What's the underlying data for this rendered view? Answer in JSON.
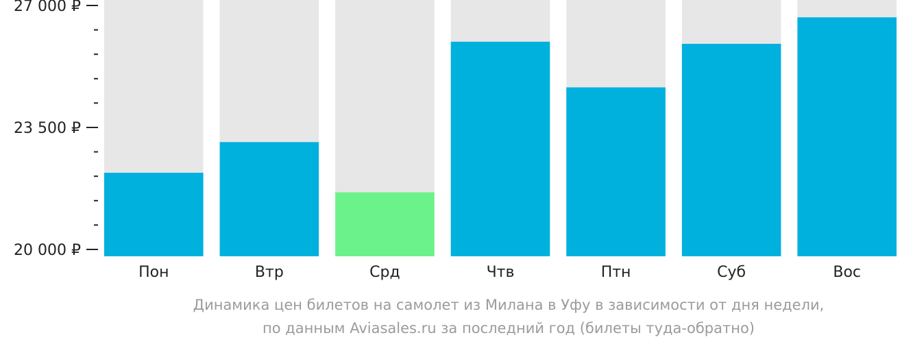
{
  "chart_data": {
    "type": "bar",
    "categories": [
      "Пон",
      "Втр",
      "Срд",
      "Чтв",
      "Птн",
      "Суб",
      "Вос"
    ],
    "values": [
      22200,
      23080,
      21640,
      25960,
      24650,
      25900,
      26660
    ],
    "ylim": [
      20000,
      27000
    ],
    "yticks": [
      20000,
      23500,
      27000
    ],
    "ytick_labels": [
      "20 000 ₽",
      "23 500 ₽",
      "27 000 ₽"
    ],
    "minor_ticks_between_labels": 4,
    "grid": false,
    "highlight_index": 2,
    "colors": {
      "bar": "#00b0dd",
      "highlight": "#6cf28a",
      "bar_background": "#e7e7e7",
      "axis": "#222222"
    }
  },
  "caption": {
    "line1": "Динамика цен билетов на самолет из Милана в Уфу в зависимости от дня недели,",
    "line2": "по данным Aviasales.ru за последний год (билеты туда-обратно)"
  }
}
